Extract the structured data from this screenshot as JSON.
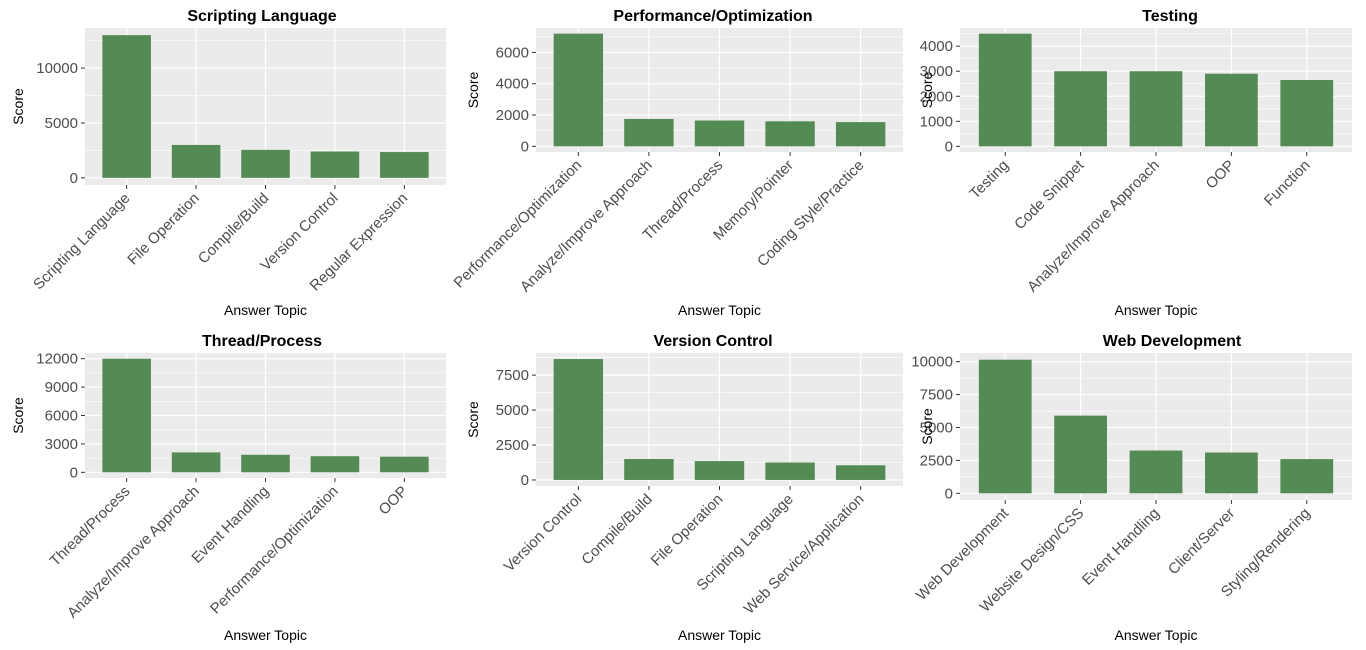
{
  "bar_color": "#548b54",
  "panel_background": "#ebebeb",
  "grid_color": "#ffffff",
  "chart_data": [
    {
      "type": "bar",
      "title": "Scripting Language",
      "xlabel": "Answer Topic",
      "ylabel": "Score",
      "categories": [
        "Scripting Language",
        "File Operation",
        "Compile/Build",
        "Version Control",
        "Regular Expression"
      ],
      "values": [
        13000,
        3000,
        2550,
        2400,
        2350
      ],
      "yticks": [
        0,
        5000,
        10000
      ],
      "ylim": [
        -650,
        13650
      ]
    },
    {
      "type": "bar",
      "title": "Performance/Optimization",
      "xlabel": "Answer Topic",
      "ylabel": "Score",
      "categories": [
        "Performance/Optimization",
        "Analyze/Improve Approach",
        "Thread/Process",
        "Memory/Pointer",
        "Coding Style/Practice"
      ],
      "values": [
        7200,
        1750,
        1650,
        1600,
        1550
      ],
      "yticks": [
        0,
        2000,
        4000,
        6000
      ],
      "ylim": [
        -360,
        7560
      ]
    },
    {
      "type": "bar",
      "title": "Testing",
      "xlabel": "Answer Topic",
      "ylabel": "Score",
      "categories": [
        "Testing",
        "Code Snippet",
        "Analyze/Improve Approach",
        "OOP",
        "Function"
      ],
      "values": [
        4500,
        3000,
        3000,
        2900,
        2650
      ],
      "yticks": [
        0,
        1000,
        2000,
        3000,
        4000
      ],
      "ylim": [
        -225,
        4725
      ]
    },
    {
      "type": "bar",
      "title": "Thread/Process",
      "xlabel": "Answer Topic",
      "ylabel": "Score",
      "categories": [
        "Thread/Process",
        "Analyze/Improve Approach",
        "Event Handling",
        "Performance/Optimization",
        "OOP"
      ],
      "values": [
        12000,
        2100,
        1850,
        1700,
        1650
      ],
      "yticks": [
        0,
        3000,
        6000,
        9000,
        12000
      ],
      "ylim": [
        -600,
        12600
      ]
    },
    {
      "type": "bar",
      "title": "Version Control",
      "xlabel": "Answer Topic",
      "ylabel": "Score",
      "categories": [
        "Version Control",
        "Compile/Build",
        "File Operation",
        "Scripting Language",
        "Web Service/Application"
      ],
      "values": [
        8650,
        1500,
        1350,
        1250,
        1050
      ],
      "yticks": [
        0,
        2500,
        5000,
        7500
      ],
      "ylim": [
        -432,
        9082
      ]
    },
    {
      "type": "bar",
      "title": "Web Development",
      "xlabel": "Answer Topic",
      "ylabel": "Score",
      "categories": [
        "Web Development",
        "Website Design/CSS",
        "Event Handling",
        "Client/Server",
        "Styling/Rendering"
      ],
      "values": [
        10150,
        5900,
        3250,
        3100,
        2600
      ],
      "yticks": [
        0,
        2500,
        5000,
        7500,
        10000
      ],
      "ylim": [
        -508,
        10658
      ]
    }
  ]
}
